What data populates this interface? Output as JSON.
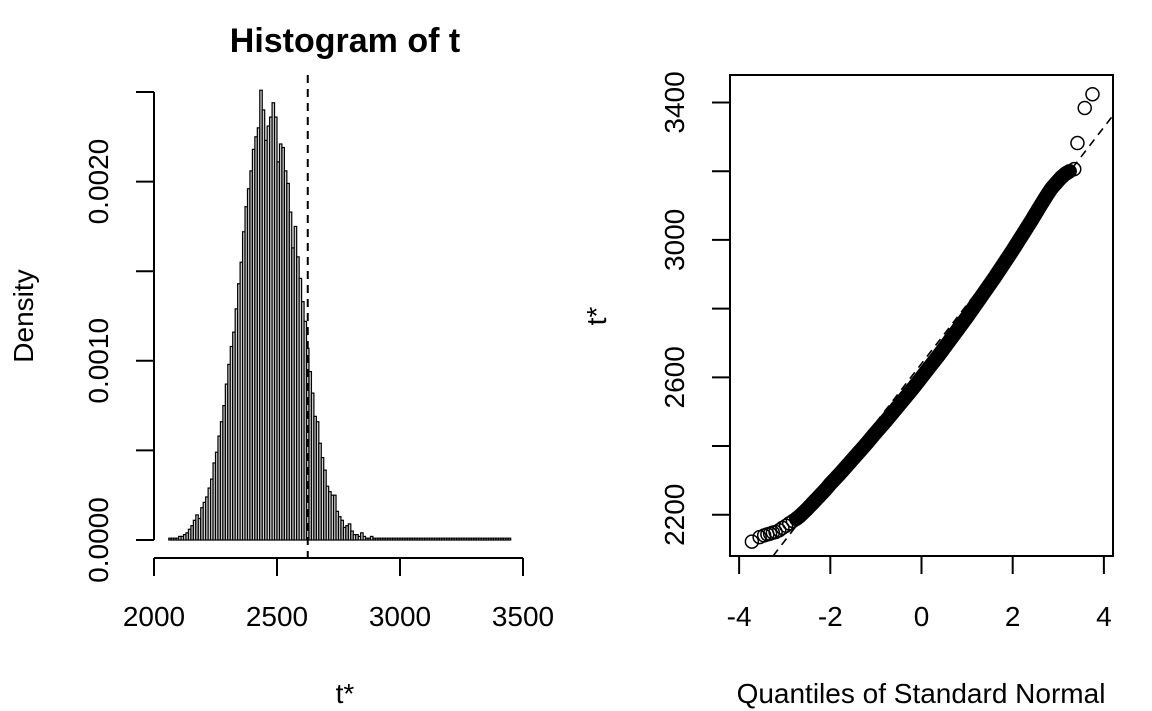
{
  "chart_data": [
    {
      "type": "bar",
      "subtype": "histogram",
      "title": "Histogram of t",
      "xlabel": "t*",
      "ylabel": "Density",
      "xlim": [
        2000,
        3500
      ],
      "ylim": [
        0,
        0.0025
      ],
      "xticks": [
        2000,
        2500,
        3000,
        3500
      ],
      "yticks": [
        0,
        0.0005,
        0.001,
        0.0015,
        0.002,
        0.0025
      ],
      "yticklabels": [
        {
          "value": 0,
          "label": "0.0000"
        },
        {
          "value": 0.001,
          "label": "0.0010"
        },
        {
          "value": 0.002,
          "label": "0.0020"
        }
      ],
      "bin_start": 2060,
      "bin_width": 10,
      "densities": [
        1e-05,
        1e-05,
        1e-05,
        1e-05,
        2e-05,
        2e-05,
        3e-05,
        4e-05,
        6e-05,
        8e-05,
        0.00011,
        0.00014,
        0.00012,
        0.00018,
        0.00021,
        0.00024,
        0.00029,
        0.00034,
        0.00043,
        0.00049,
        0.00058,
        0.00066,
        0.00075,
        0.00087,
        0.00098,
        0.00108,
        0.00116,
        0.00129,
        0.00143,
        0.00155,
        0.00172,
        0.00186,
        0.00196,
        0.00206,
        0.00218,
        0.00225,
        0.0023,
        0.00251,
        0.0024,
        0.00223,
        0.00231,
        0.00236,
        0.00244,
        0.00236,
        0.00211,
        0.00221,
        0.00219,
        0.00206,
        0.00199,
        0.00183,
        0.00163,
        0.00175,
        0.00158,
        0.00146,
        0.00133,
        0.00122,
        0.00107,
        0.00094,
        0.00082,
        0.00069,
        0.00066,
        0.00054,
        0.00046,
        0.00039,
        0.0003,
        0.00027,
        0.00025,
        0.00025,
        0.00016,
        0.00013,
        0.00011,
        7e-05,
        8e-05,
        9e-05,
        5e-05,
        3e-05,
        3e-05,
        2e-05,
        4e-05,
        2e-05,
        1e-05,
        1e-05,
        2e-05,
        1e-05,
        1e-05,
        1e-05,
        1e-05,
        1e-05,
        1e-05,
        1e-05,
        1e-05,
        1e-05,
        1e-05,
        1e-05,
        1e-05,
        1e-05,
        1e-05,
        1e-05,
        1e-05,
        1e-05,
        1e-05,
        1e-05,
        1e-05,
        1e-05,
        1e-05,
        1e-05,
        1e-05,
        1e-05,
        1e-05,
        1e-05,
        1e-05,
        1e-05,
        1e-05,
        1e-05,
        1e-05,
        1e-05,
        1e-05,
        1e-05,
        1e-05,
        1e-05,
        1e-05,
        1e-05,
        1e-05,
        1e-05,
        1e-05,
        1e-05,
        1e-05,
        1e-05,
        1e-05,
        1e-05,
        1e-05,
        1e-05,
        1e-05,
        1e-05,
        1e-05,
        1e-05,
        1e-05,
        1e-05,
        1e-05
      ],
      "vline": {
        "x": 2625,
        "style": "dashed"
      },
      "grid": false,
      "legend": "none"
    },
    {
      "type": "scatter",
      "subtype": "qq-plot",
      "xlabel": "Quantiles of Standard Normal",
      "ylabel": "t*",
      "xlim": [
        -4.2,
        4.2
      ],
      "ylim": [
        2080,
        3480
      ],
      "xticks": [
        -4,
        -2,
        0,
        2,
        4
      ],
      "yticks": [
        2200,
        2400,
        2600,
        2800,
        3000,
        3200,
        3400
      ],
      "yticklabels": [
        {
          "value": 2200,
          "label": "2200"
        },
        {
          "value": 2600,
          "label": "2600"
        },
        {
          "value": 3000,
          "label": "3000"
        },
        {
          "value": 3400,
          "label": "3400"
        }
      ],
      "reference_line": {
        "intercept": 2640,
        "slope": 172,
        "style": "dashed"
      },
      "points": [
        {
          "x": -3.72,
          "y": 2122
        },
        {
          "x": -3.55,
          "y": 2135
        },
        {
          "x": -3.45,
          "y": 2140
        },
        {
          "x": -3.38,
          "y": 2143
        },
        {
          "x": -3.32,
          "y": 2145
        },
        {
          "x": -3.26,
          "y": 2148
        },
        {
          "x": -3.2,
          "y": 2150
        },
        {
          "x": -3.12,
          "y": 2155
        },
        {
          "x": -3.05,
          "y": 2162
        },
        {
          "x": -2.97,
          "y": 2168
        },
        {
          "x": -2.9,
          "y": 2175
        },
        {
          "x": -2.82,
          "y": 2182
        },
        {
          "x": -2.75,
          "y": 2188
        },
        {
          "x": -2.68,
          "y": 2195
        },
        {
          "x": -2.6,
          "y": 2205
        },
        {
          "x": -2.5,
          "y": 2218
        },
        {
          "x": -2.4,
          "y": 2232
        },
        {
          "x": -2.3,
          "y": 2246
        },
        {
          "x": -2.2,
          "y": 2260
        },
        {
          "x": -2.1,
          "y": 2274
        },
        {
          "x": -2.0,
          "y": 2290
        },
        {
          "x": -1.8,
          "y": 2318
        },
        {
          "x": -1.6,
          "y": 2348
        },
        {
          "x": -1.4,
          "y": 2378
        },
        {
          "x": -1.2,
          "y": 2408
        },
        {
          "x": -1.0,
          "y": 2440
        },
        {
          "x": -0.8,
          "y": 2470
        },
        {
          "x": -0.6,
          "y": 2502
        },
        {
          "x": -0.4,
          "y": 2534
        },
        {
          "x": -0.2,
          "y": 2566
        },
        {
          "x": 0.0,
          "y": 2600
        },
        {
          "x": 0.2,
          "y": 2634
        },
        {
          "x": 0.4,
          "y": 2668
        },
        {
          "x": 0.6,
          "y": 2704
        },
        {
          "x": 0.8,
          "y": 2740
        },
        {
          "x": 1.0,
          "y": 2776
        },
        {
          "x": 1.2,
          "y": 2814
        },
        {
          "x": 1.4,
          "y": 2852
        },
        {
          "x": 1.6,
          "y": 2890
        },
        {
          "x": 1.8,
          "y": 2930
        },
        {
          "x": 2.0,
          "y": 2970
        },
        {
          "x": 2.2,
          "y": 3012
        },
        {
          "x": 2.4,
          "y": 3054
        },
        {
          "x": 2.6,
          "y": 3098
        },
        {
          "x": 2.75,
          "y": 3130
        },
        {
          "x": 2.85,
          "y": 3150
        },
        {
          "x": 2.95,
          "y": 3165
        },
        {
          "x": 3.05,
          "y": 3180
        },
        {
          "x": 3.15,
          "y": 3192
        },
        {
          "x": 3.25,
          "y": 3200
        },
        {
          "x": 3.35,
          "y": 3206
        },
        {
          "x": 3.42,
          "y": 3282
        },
        {
          "x": 3.58,
          "y": 3384
        },
        {
          "x": 3.75,
          "y": 3424
        }
      ],
      "grid": false,
      "legend": "none"
    }
  ]
}
